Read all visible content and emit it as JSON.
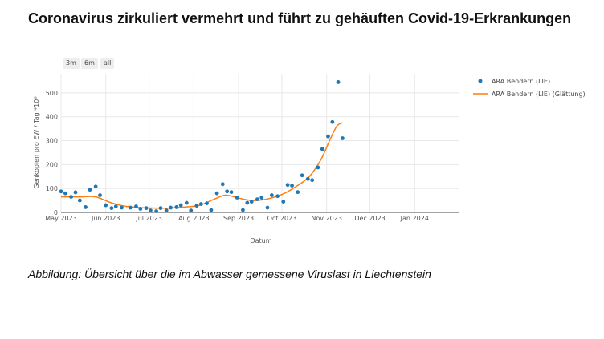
{
  "page": {
    "title": "Coronavirus zirkuliert vermehrt und führt zu gehäuften Covid-19-Erkrankungen",
    "caption": "Abbildung: Übersicht über die im Abwasser gemessene Viruslast in Liechtenstein"
  },
  "range_buttons": [
    "3m",
    "6m",
    "all"
  ],
  "colors": {
    "points": "#1f77b4",
    "smooth": "#ff7f0e",
    "grid": "#e8e8e8"
  },
  "chart_data": {
    "type": "scatter",
    "title": "",
    "xlabel": "Datum",
    "ylabel": "Genkopien pro EW / Tag *10⁶",
    "ylim": [
      0,
      580
    ],
    "xlim": [
      "2023-05-01",
      "2024-02-01"
    ],
    "y_ticks": [
      0,
      100,
      200,
      300,
      400,
      500
    ],
    "x_ticks": [
      {
        "date": "2023-05-01",
        "label": "May 2023"
      },
      {
        "date": "2023-06-01",
        "label": "Jun 2023"
      },
      {
        "date": "2023-07-01",
        "label": "Jul 2023"
      },
      {
        "date": "2023-08-01",
        "label": "Aug 2023"
      },
      {
        "date": "2023-09-01",
        "label": "Sep 2023"
      },
      {
        "date": "2023-10-01",
        "label": "Oct 2023"
      },
      {
        "date": "2023-11-01",
        "label": "Nov 2023"
      },
      {
        "date": "2023-12-01",
        "label": "Dec 2023"
      },
      {
        "date": "2024-01-01",
        "label": "Jan 2024"
      }
    ],
    "series": [
      {
        "name": "ARA Bendern (LIE)",
        "type": "scatter",
        "points": [
          [
            "2023-05-01",
            88
          ],
          [
            "2023-05-04",
            80
          ],
          [
            "2023-05-08",
            65
          ],
          [
            "2023-05-11",
            84
          ],
          [
            "2023-05-14",
            50
          ],
          [
            "2023-05-18",
            22
          ],
          [
            "2023-05-21",
            95
          ],
          [
            "2023-05-25",
            108
          ],
          [
            "2023-05-28",
            72
          ],
          [
            "2023-06-01",
            30
          ],
          [
            "2023-06-05",
            18
          ],
          [
            "2023-06-08",
            25
          ],
          [
            "2023-06-12",
            20
          ],
          [
            "2023-06-18",
            20
          ],
          [
            "2023-06-22",
            25
          ],
          [
            "2023-06-25",
            15
          ],
          [
            "2023-06-29",
            18
          ],
          [
            "2023-07-02",
            8
          ],
          [
            "2023-07-06",
            5
          ],
          [
            "2023-07-09",
            18
          ],
          [
            "2023-07-13",
            8
          ],
          [
            "2023-07-16",
            20
          ],
          [
            "2023-07-20",
            22
          ],
          [
            "2023-07-23",
            30
          ],
          [
            "2023-07-27",
            40
          ],
          [
            "2023-07-30",
            8
          ],
          [
            "2023-08-03",
            28
          ],
          [
            "2023-08-06",
            35
          ],
          [
            "2023-08-10",
            38
          ],
          [
            "2023-08-13",
            10
          ],
          [
            "2023-08-17",
            80
          ],
          [
            "2023-08-21",
            118
          ],
          [
            "2023-08-24",
            88
          ],
          [
            "2023-08-27",
            85
          ],
          [
            "2023-08-31",
            62
          ],
          [
            "2023-09-04",
            10
          ],
          [
            "2023-09-07",
            40
          ],
          [
            "2023-09-10",
            45
          ],
          [
            "2023-09-14",
            55
          ],
          [
            "2023-09-17",
            62
          ],
          [
            "2023-09-21",
            20
          ],
          [
            "2023-09-24",
            72
          ],
          [
            "2023-09-28",
            68
          ],
          [
            "2023-10-02",
            45
          ],
          [
            "2023-10-05",
            115
          ],
          [
            "2023-10-08",
            112
          ],
          [
            "2023-10-12",
            85
          ],
          [
            "2023-10-15",
            155
          ],
          [
            "2023-10-19",
            140
          ],
          [
            "2023-10-22",
            135
          ],
          [
            "2023-10-26",
            188
          ],
          [
            "2023-10-29",
            265
          ],
          [
            "2023-11-02",
            318
          ],
          [
            "2023-11-05",
            378
          ],
          [
            "2023-11-09",
            545
          ],
          [
            "2023-11-12",
            310
          ]
        ]
      },
      {
        "name": "ARA Bendern (LIE) (Glättung)",
        "type": "line",
        "points": [
          [
            "2023-05-01",
            65
          ],
          [
            "2023-05-15",
            65
          ],
          [
            "2023-05-25",
            65
          ],
          [
            "2023-06-05",
            40
          ],
          [
            "2023-06-15",
            25
          ],
          [
            "2023-06-25",
            20
          ],
          [
            "2023-07-05",
            18
          ],
          [
            "2023-07-15",
            18
          ],
          [
            "2023-07-25",
            22
          ],
          [
            "2023-08-05",
            30
          ],
          [
            "2023-08-15",
            55
          ],
          [
            "2023-08-23",
            72
          ],
          [
            "2023-09-01",
            60
          ],
          [
            "2023-09-10",
            50
          ],
          [
            "2023-09-20",
            55
          ],
          [
            "2023-10-01",
            75
          ],
          [
            "2023-10-10",
            105
          ],
          [
            "2023-10-20",
            150
          ],
          [
            "2023-10-28",
            220
          ],
          [
            "2023-11-03",
            300
          ],
          [
            "2023-11-08",
            360
          ],
          [
            "2023-11-12",
            375
          ]
        ]
      }
    ]
  }
}
